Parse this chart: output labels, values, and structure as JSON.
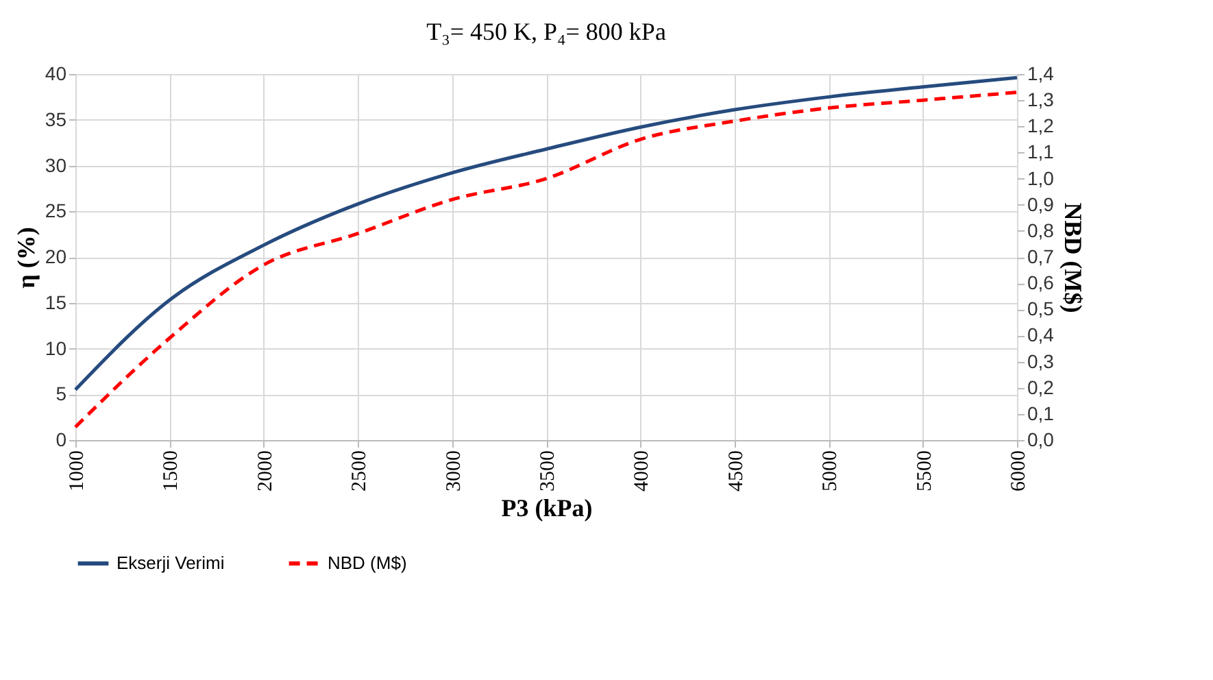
{
  "chart_data": {
    "type": "line",
    "title": "T₃= 450 K, P₄= 800 kPa",
    "xlabel": "P3 (kPa)",
    "ylabel": "η (%)",
    "y2label": "NBD (M$)",
    "x": [
      1000,
      1500,
      2000,
      2500,
      3000,
      3500,
      4000,
      4500,
      5000,
      5500,
      6000
    ],
    "series": [
      {
        "name": "Ekserji Verimi",
        "color": "#264b7e",
        "line_style": "solid",
        "values": [
          5.5,
          15.3,
          21.3,
          25.8,
          29.2,
          31.8,
          34.2,
          36.1,
          37.5,
          38.6,
          39.6
        ]
      },
      {
        "name": "NBD (M$)",
        "color": "#ff0000",
        "line_style": "dashed",
        "axis": "y2",
        "values": [
          0.05,
          0.39,
          0.67,
          0.79,
          0.92,
          1.0,
          1.15,
          1.22,
          1.27,
          1.3,
          1.33
        ]
      }
    ],
    "xlim": [
      1000,
      6000
    ],
    "xticks": [
      1000,
      1500,
      2000,
      2500,
      3000,
      3500,
      4000,
      4500,
      5000,
      5500,
      6000
    ],
    "ylim": [
      0,
      40
    ],
    "yticks": [
      0,
      5,
      10,
      15,
      20,
      25,
      30,
      35,
      40
    ],
    "y2lim": [
      0,
      1.4
    ],
    "y2ticks": [
      {
        "value": 0,
        "label": "0,0"
      },
      {
        "value": 0.1,
        "label": "0,1"
      },
      {
        "value": 0.2,
        "label": "0,2"
      },
      {
        "value": 0.3,
        "label": "0,3"
      },
      {
        "value": 0.4,
        "label": "0,4"
      },
      {
        "value": 0.5,
        "label": "0,5"
      },
      {
        "value": 0.6,
        "label": "0,6"
      },
      {
        "value": 0.7,
        "label": "0,7"
      },
      {
        "value": 0.8,
        "label": "0,8"
      },
      {
        "value": 0.9,
        "label": "0,9"
      },
      {
        "value": 1.0,
        "label": "1,0"
      },
      {
        "value": 1.1,
        "label": "1,1"
      },
      {
        "value": 1.2,
        "label": "1,2"
      },
      {
        "value": 1.3,
        "label": "1,3"
      },
      {
        "value": 1.4,
        "label": "1,4"
      }
    ],
    "grid": true,
    "legend": "bottom",
    "marker": "none"
  }
}
